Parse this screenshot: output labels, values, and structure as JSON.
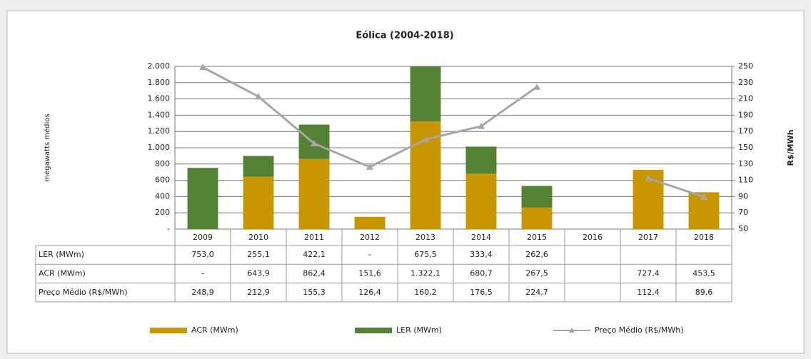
{
  "chart_data": {
    "type": "bar",
    "title": "Eólica (2004-2018)",
    "ylabel": "megawatts médios",
    "y2label": "R$/MWh",
    "categories": [
      "2009",
      "2010",
      "2011",
      "2012",
      "2013",
      "2014",
      "2015",
      "2016",
      "2017",
      "2018"
    ],
    "series": [
      {
        "name": "ACR (MWm)",
        "color": "#c89600",
        "values": [
          null,
          643.9,
          862.4,
          151.6,
          1322.1,
          680.7,
          267.5,
          null,
          727.4,
          453.5
        ],
        "value_labels": [
          "-",
          "643,9",
          "862,4",
          "151,6",
          "1.322,1",
          "680,7",
          "267,5",
          null,
          "727,4",
          "453,5"
        ]
      },
      {
        "name": "LER (MWm)",
        "color": "#548235",
        "values": [
          753.0,
          255.1,
          422.1,
          null,
          675.5,
          333.4,
          262.6,
          null,
          null,
          null
        ],
        "value_labels": [
          "753,0",
          "255,1",
          "422,1",
          "-",
          "675,5",
          "333,4",
          "262,6",
          null,
          null,
          null
        ]
      },
      {
        "name": "Preço Médio (R$/MWh)",
        "color": "#a6a6a6",
        "type": "line",
        "axis": "y2",
        "values": [
          248.9,
          212.9,
          155.3,
          126.4,
          160.2,
          176.5,
          224.7,
          null,
          112.4,
          89.6
        ],
        "value_labels": [
          "248,9",
          "212,9",
          "155,3",
          "126,4",
          "160,2",
          "176,5",
          "224,7",
          null,
          "112,4",
          "89,6"
        ]
      }
    ],
    "ylim": [
      0,
      2000
    ],
    "yticks": [
      {
        "value": 0,
        "label": "-"
      },
      200,
      400,
      600,
      800,
      {
        "value": 1000,
        "label": "1.000"
      },
      {
        "value": 1200,
        "label": "1.200"
      },
      {
        "value": 1400,
        "label": "1.400"
      },
      {
        "value": 1600,
        "label": "1.600"
      },
      {
        "value": 1800,
        "label": "1.800"
      },
      {
        "value": 2000,
        "label": "2.000"
      }
    ],
    "y2lim": [
      50,
      250
    ],
    "y2ticks": [
      50,
      70,
      90,
      110,
      130,
      150,
      170,
      190,
      210,
      230,
      250
    ],
    "grid": true,
    "stacked": true,
    "legend": "bottom"
  }
}
